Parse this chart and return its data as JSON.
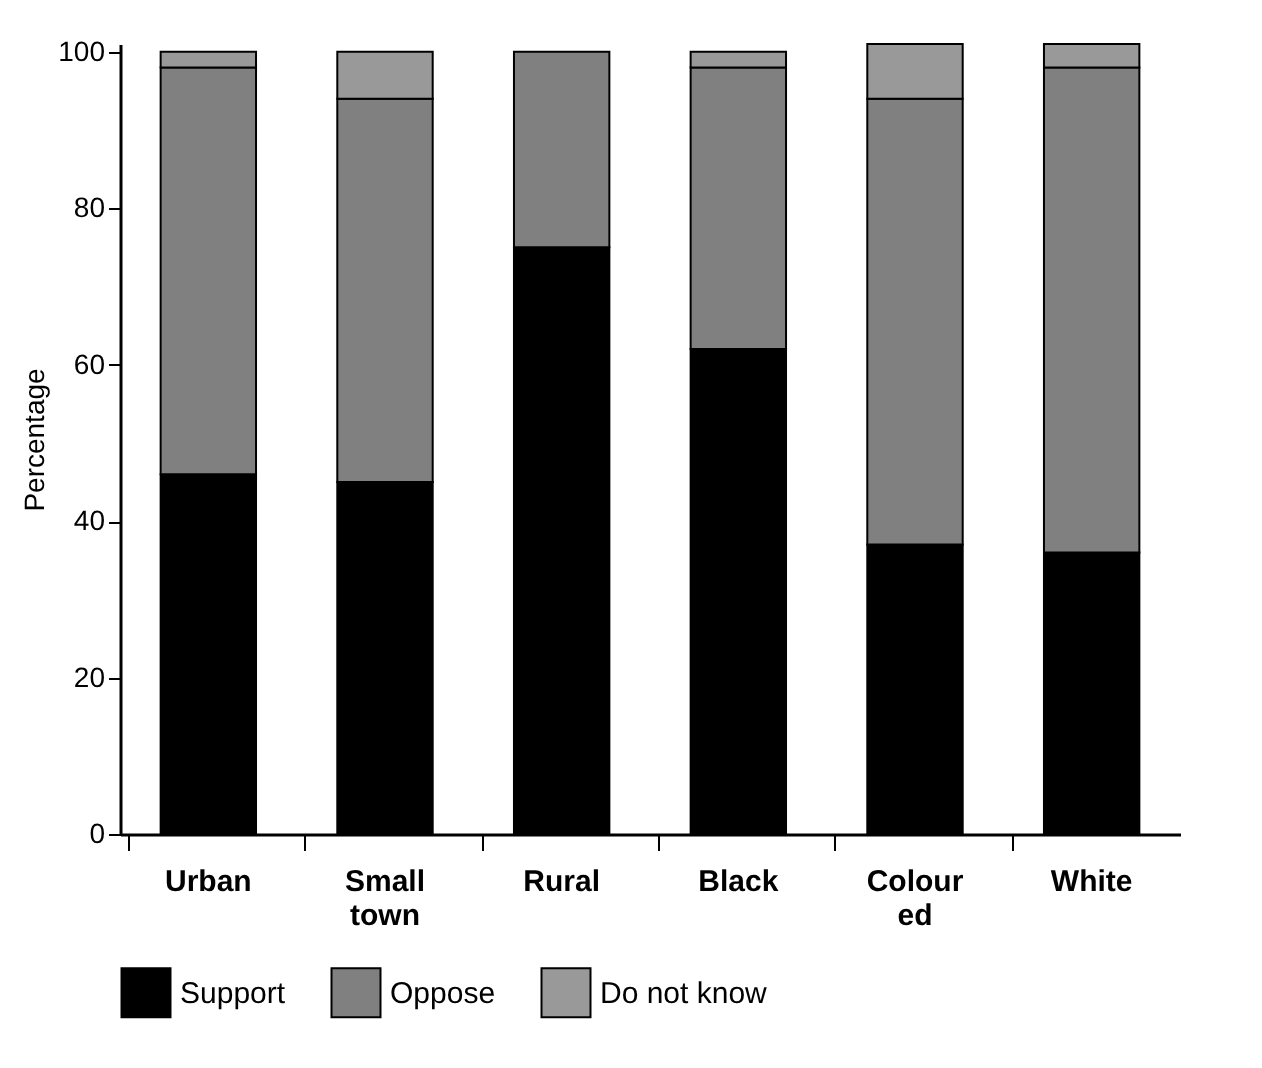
{
  "chart_data": {
    "type": "bar",
    "stacked": true,
    "ylabel": "Percentage",
    "categories": [
      "Urban",
      "Small town",
      "Rural",
      "Black",
      "Colour ed",
      "White"
    ],
    "series": [
      {
        "name": "Support",
        "color": "#000000",
        "values": [
          46,
          45,
          75,
          62,
          37,
          36
        ]
      },
      {
        "name": "Oppose",
        "color": "#808080",
        "values": [
          52,
          49,
          25,
          36,
          57,
          62
        ]
      },
      {
        "name": "Do not know",
        "color": "#999999",
        "values": [
          2,
          6,
          0,
          2,
          7,
          3
        ]
      }
    ],
    "ylim": [
      0,
      101
    ],
    "yticks": [
      0,
      20,
      40,
      60,
      80,
      100
    ],
    "grid": false,
    "legend": "bottom"
  }
}
